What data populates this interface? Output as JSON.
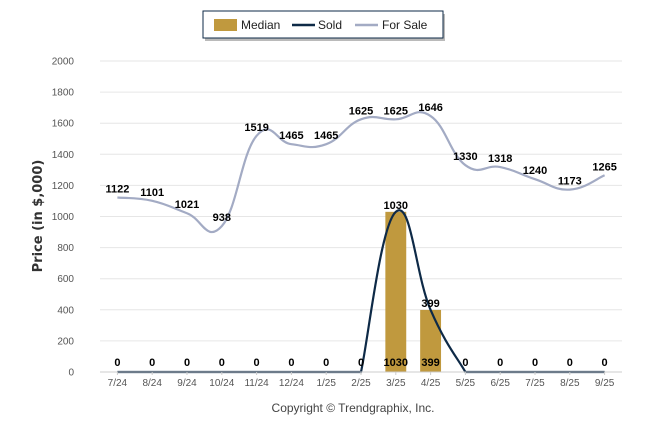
{
  "chart_data": {
    "type": "bar",
    "title": "",
    "xlabel": "",
    "ylabel": "Price (in $,000)",
    "ylim": [
      0,
      2000
    ],
    "yticks": [
      0,
      200,
      400,
      600,
      800,
      1000,
      1200,
      1400,
      1600,
      1800,
      2000
    ],
    "grid": true,
    "legend_position": "top-center",
    "categories": [
      "7/24",
      "8/24",
      "9/24",
      "10/24",
      "11/24",
      "12/24",
      "1/25",
      "2/25",
      "3/25",
      "4/25",
      "5/25",
      "6/25",
      "7/25",
      "8/25",
      "9/25"
    ],
    "series": [
      {
        "name": "Median",
        "kind": "bar",
        "color": "#C0993E",
        "values": [
          null,
          null,
          null,
          null,
          null,
          null,
          null,
          null,
          1030,
          399,
          null,
          null,
          null,
          null,
          null
        ]
      },
      {
        "name": "Sold",
        "kind": "line",
        "color": "#0E2A47",
        "values": [
          0,
          0,
          0,
          0,
          0,
          0,
          0,
          0,
          1030,
          399,
          0,
          0,
          0,
          0,
          0
        ]
      },
      {
        "name": "For Sale",
        "kind": "line",
        "color": "#A3ABC4",
        "values": [
          1122,
          1101,
          1021,
          938,
          1519,
          1465,
          1465,
          1625,
          1625,
          1646,
          1330,
          1318,
          1240,
          1173,
          1265
        ]
      }
    ],
    "footer": "Copyright © Trendgraphix, Inc."
  }
}
